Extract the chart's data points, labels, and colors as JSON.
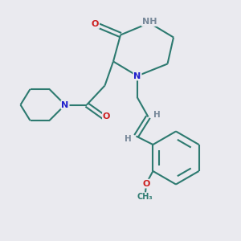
{
  "bg_color": "#eaeaef",
  "bond_color": "#2d7a70",
  "N_color": "#2020cc",
  "O_color": "#cc2020",
  "H_color": "#778899",
  "line_width": 1.5,
  "font_size": 8.0,
  "figsize": [
    3.0,
    3.0
  ],
  "dpi": 100,
  "xlim": [
    0,
    10
  ],
  "ylim": [
    0,
    10
  ]
}
